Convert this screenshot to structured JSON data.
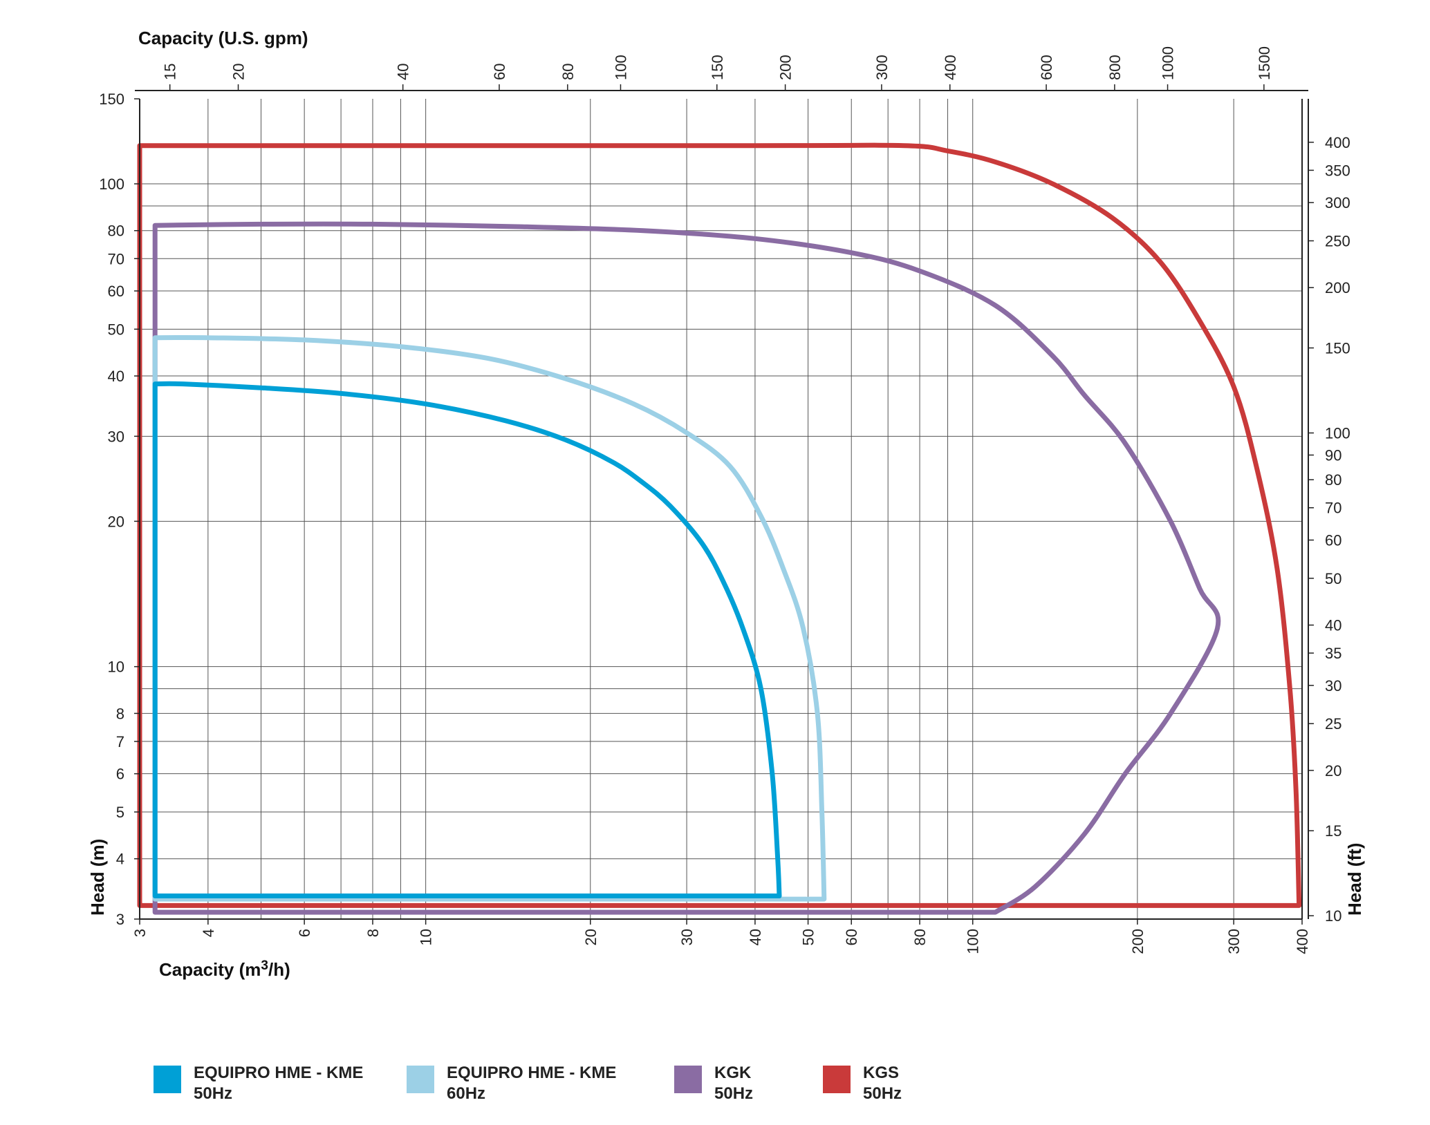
{
  "chart_data": {
    "type": "line",
    "x_bottom": {
      "label": "Capacity (m3/h)",
      "label_main": "Capacity (m",
      "label_sup": "3",
      "label_end": "/h)",
      "scale": "log",
      "range": [
        3,
        400
      ],
      "ticks": [
        "3",
        "4",
        "6",
        "8",
        "10",
        "20",
        "30",
        "40",
        "50",
        "60",
        "80",
        "100",
        "200",
        "300",
        "400"
      ]
    },
    "x_top": {
      "label": "Capacity (U.S. gpm)",
      "scale": "log",
      "ticks": [
        "15",
        "20",
        "40",
        "60",
        "80",
        "100",
        "150",
        "200",
        "300",
        "400",
        "600",
        "800",
        "1000",
        "1500"
      ]
    },
    "y_left": {
      "label": "Head (m)",
      "scale": "log",
      "range": [
        3,
        150
      ],
      "ticks": [
        "3",
        "4",
        "5",
        "6",
        "7",
        "8",
        "10",
        "20",
        "30",
        "40",
        "50",
        "60",
        "70",
        "80",
        "100",
        "150"
      ]
    },
    "y_right": {
      "label": "Head (ft)",
      "scale": "log",
      "ticks": [
        "10",
        "15",
        "20",
        "25",
        "30",
        "35",
        "40",
        "50",
        "60",
        "70",
        "80",
        "90",
        "100",
        "150",
        "200",
        "250",
        "300",
        "350",
        "400"
      ]
    },
    "grid": true,
    "legend_position": "bottom",
    "series": [
      {
        "name": "EQUIPRO HME - KME 50Hz",
        "name_line1": "EQUIPRO HME - KME",
        "name_line2": "50Hz",
        "color": "#00A0D6",
        "points": [
          [
            3.2,
            3.35
          ],
          [
            3.2,
            38.5
          ],
          [
            3.6,
            38.5
          ],
          [
            5,
            37.8
          ],
          [
            7,
            36.8
          ],
          [
            10,
            35
          ],
          [
            14,
            32.3
          ],
          [
            18,
            29.5
          ],
          [
            22,
            26.5
          ],
          [
            25,
            24
          ],
          [
            28,
            21.5
          ],
          [
            32,
            18
          ],
          [
            35,
            15
          ],
          [
            38,
            12
          ],
          [
            41,
            9
          ],
          [
            43,
            6
          ],
          [
            44,
            4
          ],
          [
            44.3,
            3.35
          ],
          [
            3.2,
            3.35
          ]
        ]
      },
      {
        "name": "EQUIPRO HME - KME 60Hz",
        "name_line1": "EQUIPRO HME - KME",
        "name_line2": "60Hz",
        "color": "#9CD0E6",
        "points": [
          [
            3.2,
            3.3
          ],
          [
            3.2,
            48
          ],
          [
            4,
            48
          ],
          [
            6,
            47.5
          ],
          [
            9,
            46
          ],
          [
            13,
            43.5
          ],
          [
            18,
            39.5
          ],
          [
            24,
            35
          ],
          [
            30,
            30.5
          ],
          [
            36,
            26
          ],
          [
            41,
            20.5
          ],
          [
            45,
            16
          ],
          [
            49,
            12
          ],
          [
            52,
            8
          ],
          [
            53,
            5
          ],
          [
            53.5,
            3.3
          ],
          [
            3.2,
            3.3
          ]
        ]
      },
      {
        "name": "KGK 50Hz",
        "name_line1": "KGK",
        "name_line2": "50Hz",
        "color": "#8A6CA3",
        "points": [
          [
            3.2,
            3.1
          ],
          [
            3.2,
            82
          ],
          [
            5,
            82.5
          ],
          [
            8,
            82.5
          ],
          [
            15,
            81.5
          ],
          [
            25,
            80
          ],
          [
            40,
            77
          ],
          [
            60,
            72
          ],
          [
            80,
            66
          ],
          [
            110,
            56
          ],
          [
            140,
            44
          ],
          [
            160,
            36.5
          ],
          [
            190,
            29
          ],
          [
            230,
            20
          ],
          [
            260,
            14.5
          ],
          [
            280,
            12
          ],
          [
            230,
            8
          ],
          [
            190,
            6
          ],
          [
            160,
            4.5
          ],
          [
            130,
            3.5
          ],
          [
            110,
            3.1
          ],
          [
            3.2,
            3.1
          ]
        ]
      },
      {
        "name": "KGS 50Hz",
        "name_line1": "KGS",
        "name_line2": "50Hz",
        "color": "#C93A3A",
        "points": [
          [
            3,
            3.2
          ],
          [
            3,
            120
          ],
          [
            40,
            120
          ],
          [
            75,
            120
          ],
          [
            90,
            117
          ],
          [
            110,
            111
          ],
          [
            140,
            100
          ],
          [
            180,
            85
          ],
          [
            220,
            69
          ],
          [
            260,
            52
          ],
          [
            300,
            38
          ],
          [
            330,
            26
          ],
          [
            360,
            16
          ],
          [
            380,
            9
          ],
          [
            390,
            5.5
          ],
          [
            395,
            3.2
          ],
          [
            3,
            3.2
          ]
        ]
      }
    ]
  }
}
